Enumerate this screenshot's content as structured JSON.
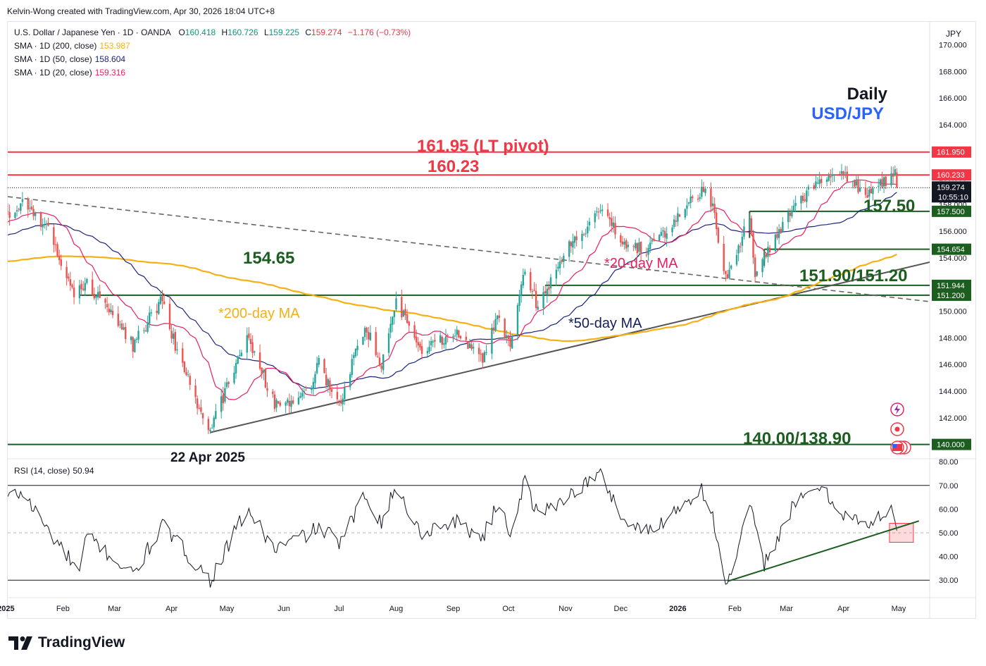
{
  "header": {
    "credit": "Kelvin-Wong created with TradingView.com, Apr 30, 2026 18:04 UTC+8",
    "currency": "JPY"
  },
  "legend": {
    "symbol": "U.S. Dollar / Japanese Yen · 1D · OANDA",
    "ohlc": {
      "o_label": "O",
      "o": "160.418",
      "h_label": "H",
      "h": "160.726",
      "l_label": "L",
      "l": "159.225",
      "c_label": "C",
      "c": "159.274",
      "chg": "−1.176 (−0.73%)"
    },
    "sma200_label": "SMA · 1D (200, close)",
    "sma200_value": "153.987",
    "sma50_label": "SMA · 1D (50, close)",
    "sma50_value": "158.604",
    "sma20_label": "SMA · 1D (20, close)",
    "sma20_value": "159.316",
    "rsi_label": "RSI (14, close)",
    "rsi_value": "50.94"
  },
  "annotations": {
    "daily": "Daily",
    "pair": "USD/JPY",
    "lt_pivot": "161.95 (LT pivot)",
    "r1": "160.23",
    "s1": "157.50",
    "mid": "154.65",
    "s2": "151.90/151.20",
    "s3": "140.00/138.90",
    "low_date": "22 Apr 2025",
    "ma20": "*20-day MA",
    "ma50": "*50-day MA",
    "ma200": "*200-day MA"
  },
  "price_tags": [
    {
      "label": "161.950",
      "value": 161.95,
      "color": "#f23645"
    },
    {
      "label": "160.233",
      "value": 160.233,
      "color": "#f23645"
    },
    {
      "label": "157.500",
      "value": 157.5,
      "color": "#1b5e20"
    },
    {
      "label": "154.654",
      "value": 154.654,
      "color": "#1b5e20"
    },
    {
      "label": "151.944",
      "value": 151.944,
      "color": "#1b5e20"
    },
    {
      "label": "151.200",
      "value": 151.2,
      "color": "#1b5e20"
    },
    {
      "label": "140.000",
      "value": 140.0,
      "color": "#1b5e20"
    }
  ],
  "last_price": {
    "label": "159.274",
    "countdown": "10:55:10",
    "value": 159.274
  },
  "footer": {
    "brand": "TradingView"
  },
  "colors": {
    "up": "#26a69a",
    "down": "#ef5350",
    "sma20": "#e91e63",
    "sma50": "#1a237e",
    "sma200": "#f5b014",
    "resistance": "#f23645",
    "support": "#1b5e20",
    "trend": "#555555",
    "rsi": "#131722",
    "ann_green": "#1b5e20",
    "ann_red": "#f23645",
    "ann_blue": "#2962ff",
    "ann_navy": "#131f5c"
  },
  "chart_data": [
    {
      "type": "candlestick",
      "title": "U.S. Dollar / Japanese Yen · 1D · OANDA",
      "ylim": [
        138.6,
        171
      ],
      "y_ticks": [
        142,
        144,
        146,
        148,
        150,
        152,
        154,
        156,
        158,
        160,
        162,
        164,
        166,
        168
      ],
      "x_ticks": [
        "2025",
        "Feb",
        "Mar",
        "Apr",
        "May",
        "Jun",
        "Jul",
        "Aug",
        "Sep",
        "Oct",
        "Nov",
        "Dec",
        "2026",
        "Feb",
        "Mar",
        "Apr",
        "May"
      ],
      "date_range": [
        "2025-01-02",
        "2026-04-30"
      ],
      "anchors": [
        {
          "date": "2025-01-02",
          "close": 157.4
        },
        {
          "date": "2025-01-10",
          "close": 158.0
        },
        {
          "date": "2025-01-24",
          "close": 156.0
        },
        {
          "date": "2025-02-07",
          "close": 151.4
        },
        {
          "date": "2025-02-14",
          "close": 152.2
        },
        {
          "date": "2025-03-03",
          "close": 149.0
        },
        {
          "date": "2025-03-11",
          "close": 147.4
        },
        {
          "date": "2025-03-27",
          "close": 151.0
        },
        {
          "date": "2025-04-04",
          "close": 146.8
        },
        {
          "date": "2025-04-22",
          "close": 140.9
        },
        {
          "date": "2025-05-12",
          "close": 148.3
        },
        {
          "date": "2025-05-27",
          "close": 143.0
        },
        {
          "date": "2025-06-12",
          "close": 143.5
        },
        {
          "date": "2025-06-20",
          "close": 146.0
        },
        {
          "date": "2025-07-01",
          "close": 143.0
        },
        {
          "date": "2025-07-15",
          "close": 148.9
        },
        {
          "date": "2025-07-24",
          "close": 146.0
        },
        {
          "date": "2025-08-01",
          "close": 150.8
        },
        {
          "date": "2025-08-14",
          "close": 147.1
        },
        {
          "date": "2025-09-02",
          "close": 148.4
        },
        {
          "date": "2025-09-17",
          "close": 146.4
        },
        {
          "date": "2025-09-26",
          "close": 149.8
        },
        {
          "date": "2025-10-02",
          "close": 147.0
        },
        {
          "date": "2025-10-10",
          "close": 153.2
        },
        {
          "date": "2025-10-17",
          "close": 150.2
        },
        {
          "date": "2025-10-30",
          "close": 154.1
        },
        {
          "date": "2025-11-20",
          "close": 157.7
        },
        {
          "date": "2025-12-03",
          "close": 155.1
        },
        {
          "date": "2025-12-16",
          "close": 154.6
        },
        {
          "date": "2026-01-14",
          "close": 159.1
        },
        {
          "date": "2026-01-20",
          "close": 158.0
        },
        {
          "date": "2026-01-23",
          "close": 155.0
        },
        {
          "date": "2026-01-28",
          "close": 152.2
        },
        {
          "date": "2026-02-09",
          "close": 157.3
        },
        {
          "date": "2026-02-12",
          "close": 152.7
        },
        {
          "date": "2026-03-04",
          "close": 157.6
        },
        {
          "date": "2026-03-18",
          "close": 159.6
        },
        {
          "date": "2026-03-31",
          "close": 160.2
        },
        {
          "date": "2026-04-15",
          "close": 158.9
        },
        {
          "date": "2026-04-29",
          "close": 160.45
        },
        {
          "date": "2026-04-30",
          "close": 159.274
        }
      ],
      "last_bar": {
        "date": "2026-04-30",
        "open": 160.418,
        "high": 160.726,
        "low": 159.225,
        "close": 159.274
      },
      "indicators": {
        "sma20": 159.316,
        "sma50": 158.604,
        "sma200": 153.987
      },
      "horizontal_levels": [
        161.95,
        160.233,
        157.5,
        154.654,
        151.944,
        151.2,
        140.0
      ],
      "trendlines": [
        {
          "from": {
            "date": "2025-04-22",
            "value": 140.9
          },
          "to": {
            "date": "2026-04-30",
            "value": 153.1
          }
        },
        {
          "from": {
            "date": "2025-01-02",
            "value": 158.6
          },
          "to": {
            "date": "2026-04-30",
            "value": 151.0
          }
        }
      ]
    },
    {
      "type": "line",
      "title": "RSI (14, close)",
      "ylim": [
        22,
        82
      ],
      "y_ticks": [
        30,
        40,
        50,
        60,
        70,
        80
      ],
      "bands": [
        70,
        30
      ],
      "midline": 50,
      "anchors": [
        {
          "date": "2025-01-02",
          "value": 65
        },
        {
          "date": "2025-01-10",
          "value": 67
        },
        {
          "date": "2025-01-24",
          "value": 51
        },
        {
          "date": "2025-02-10",
          "value": 33
        },
        {
          "date": "2025-02-14",
          "value": 49
        },
        {
          "date": "2025-03-11",
          "value": 32
        },
        {
          "date": "2025-03-27",
          "value": 53
        },
        {
          "date": "2025-04-22",
          "value": 30
        },
        {
          "date": "2025-05-12",
          "value": 60
        },
        {
          "date": "2025-05-27",
          "value": 43
        },
        {
          "date": "2025-06-20",
          "value": 52
        },
        {
          "date": "2025-07-02",
          "value": 46
        },
        {
          "date": "2025-07-15",
          "value": 66
        },
        {
          "date": "2025-07-24",
          "value": 55
        },
        {
          "date": "2025-08-01",
          "value": 69
        },
        {
          "date": "2025-08-14",
          "value": 50
        },
        {
          "date": "2025-09-02",
          "value": 55
        },
        {
          "date": "2025-09-17",
          "value": 48
        },
        {
          "date": "2025-09-26",
          "value": 63
        },
        {
          "date": "2025-10-02",
          "value": 50
        },
        {
          "date": "2025-10-10",
          "value": 72
        },
        {
          "date": "2025-10-17",
          "value": 57
        },
        {
          "date": "2025-10-30",
          "value": 64
        },
        {
          "date": "2025-11-20",
          "value": 75
        },
        {
          "date": "2025-12-03",
          "value": 55
        },
        {
          "date": "2025-12-16",
          "value": 50
        },
        {
          "date": "2026-01-14",
          "value": 69
        },
        {
          "date": "2026-01-20",
          "value": 56
        },
        {
          "date": "2026-01-28",
          "value": 27
        },
        {
          "date": "2026-02-09",
          "value": 61
        },
        {
          "date": "2026-02-17",
          "value": 37
        },
        {
          "date": "2026-03-04",
          "value": 60
        },
        {
          "date": "2026-03-18",
          "value": 70
        },
        {
          "date": "2026-03-31",
          "value": 59
        },
        {
          "date": "2026-04-15",
          "value": 52
        },
        {
          "date": "2026-04-27",
          "value": 62
        },
        {
          "date": "2026-04-30",
          "value": 50.94
        }
      ],
      "trendline": {
        "from": {
          "date": "2026-01-28",
          "value": 29.5
        },
        "to": {
          "date": "2026-05-12",
          "value": 55
        }
      },
      "highlight_box": {
        "date_from": "2026-04-26",
        "date_to": "2026-05-09",
        "value_from": 46,
        "value_to": 54
      }
    }
  ]
}
